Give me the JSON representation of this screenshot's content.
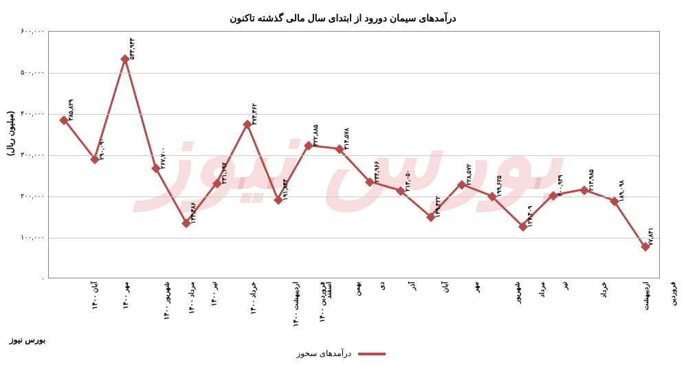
{
  "chart": {
    "type": "line",
    "title": "درآمدهای سیمان دورود از ابتدای سال مالی گذشته تاکنون",
    "y_axis_label": "(میلیون ریال)",
    "series_name": "درآمدهای سخوز",
    "watermark_text": "بورس نیوز",
    "footer_credit": "بورس نیوز",
    "line_color": "#b94a48",
    "line_width": 3,
    "marker_color": "#b94a48",
    "marker_size": 10,
    "background_color": "#ffffff",
    "grid_color": "#cccccc",
    "border_color": "#888888",
    "title_fontsize": 14,
    "label_fontsize": 12,
    "tick_fontsize": 10,
    "data_label_fontsize": 9,
    "ylim": [
      0,
      600000
    ],
    "ytick_step": 100000,
    "yticks": [
      {
        "v": 0,
        "label": "۰"
      },
      {
        "v": 100000,
        "label": "۱۰۰,۰۰۰"
      },
      {
        "v": 200000,
        "label": "۲۰۰,۰۰۰"
      },
      {
        "v": 300000,
        "label": "۳۰۰,۰۰۰"
      },
      {
        "v": 400000,
        "label": "۴۰۰,۰۰۰"
      },
      {
        "v": 500000,
        "label": "۵۰۰,۰۰۰"
      },
      {
        "v": 600000,
        "label": "۶۰۰,۰۰۰"
      }
    ],
    "categories": [
      "فروردین",
      "اردیبهشت",
      "خرداد",
      "تیر",
      "مرداد",
      "شهریور",
      "مهر",
      "آبان",
      "آذر",
      "دی",
      "بهمن",
      "اسفند",
      "فروردین ۱۴۰۰",
      "اردیبهشت ۱۴۰۰",
      "خرداد ۱۴۰۰",
      "تیر ۱۴۰۰",
      "مرداد ۱۴۰۰",
      "شهریور ۱۴۰۰",
      "مهر ۱۴۰۰",
      "آبان ۱۴۰۰"
    ],
    "values": [
      77841,
      189098,
      214985,
      200939,
      127409,
      199625,
      228572,
      149422,
      213050,
      234966,
      314578,
      322885,
      191844,
      374362,
      231197,
      134386,
      267700,
      533943,
      290090,
      385829
    ],
    "value_labels": [
      "۷۷,۸۴۱",
      "۱۸۹,۰۹۸",
      "۲۱۴,۹۸۵",
      "۲۰۰,۹۳۹",
      "۱۲۷,۴۰۹",
      "۱۹۹,۶۲۵",
      "۲۲۸,۵۷۲",
      "۱۴۹,۴۲۲",
      "۲۱۳,۰۵۰",
      "۲۳۴,۹۶۶",
      "۳۱۴,۵۷۸",
      "۳۲۲,۸۸۵",
      "۱۹۱,۸۴۴",
      "۳۷۴,۳۶۲",
      "۲۳۱,۱۹۷",
      "۱۳۴,۳۸۶",
      "۲۶۷,۷۰۰",
      "۵۳۳,۹۴۳",
      "۲۹۰,۰۹۰",
      "۳۸۵,۸۲۹"
    ]
  }
}
